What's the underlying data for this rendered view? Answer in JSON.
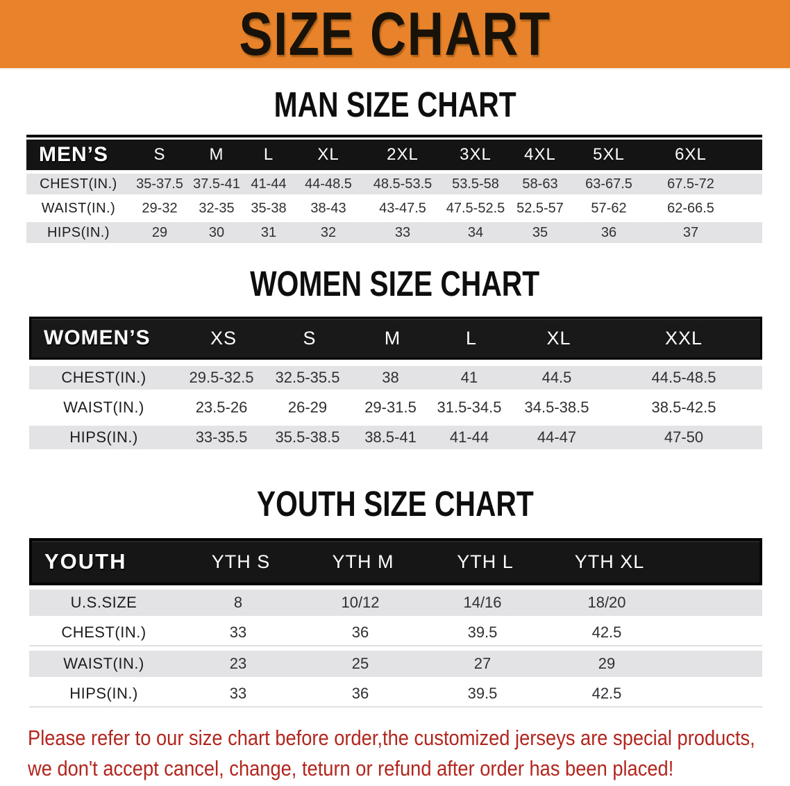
{
  "banner": {
    "title": "SIZE CHART",
    "background_color": "#e8832b",
    "title_color": "#181208"
  },
  "sections": {
    "men": {
      "title": "MAN SIZE CHART",
      "header": [
        "MEN’S",
        "S",
        "M",
        "L",
        "XL",
        "2XL",
        "3XL",
        "4XL",
        "5XL",
        "6XL"
      ],
      "rows": [
        {
          "label": "CHEST(IN.)",
          "values": [
            "35-37.5",
            "37.5-41",
            "41-44",
            "44-48.5",
            "48.5-53.5",
            "53.5-58",
            "58-63",
            "63-67.5",
            "67.5-72"
          ]
        },
        {
          "label": "WAIST(IN.)",
          "values": [
            "29-32",
            "32-35",
            "35-38",
            "38-43",
            "43-47.5",
            "47.5-52.5",
            "52.5-57",
            "57-62",
            "62-66.5"
          ]
        },
        {
          "label": "HIPS(IN.)",
          "values": [
            "29",
            "30",
            "31",
            "32",
            "33",
            "34",
            "35",
            "36",
            "37"
          ]
        }
      ]
    },
    "women": {
      "title": "WOMEN SIZE CHART",
      "header": [
        "WOMEN’S",
        "XS",
        "S",
        "M",
        "L",
        "XL",
        "XXL"
      ],
      "rows": [
        {
          "label": "CHEST(IN.)",
          "values": [
            "29.5-32.5",
            "32.5-35.5",
            "38",
            "41",
            "44.5",
            "44.5-48.5"
          ]
        },
        {
          "label": "WAIST(IN.)",
          "values": [
            "23.5-26",
            "26-29",
            "29-31.5",
            "31.5-34.5",
            "34.5-38.5",
            "38.5-42.5"
          ]
        },
        {
          "label": "HIPS(IN.)",
          "values": [
            "33-35.5",
            "35.5-38.5",
            "38.5-41",
            "41-44",
            "44-47",
            "47-50"
          ]
        }
      ]
    },
    "youth": {
      "title": "YOUTH SIZE CHART",
      "header": [
        "YOUTH",
        "YTH S",
        "YTH M",
        "YTH L",
        "YTH XL"
      ],
      "rows": [
        {
          "label": "U.S.SIZE",
          "values": [
            "8",
            "10/12",
            "14/16",
            "18/20"
          ]
        },
        {
          "label": "CHEST(IN.)",
          "values": [
            "33",
            "36",
            "39.5",
            "42.5"
          ]
        },
        {
          "label": "WAIST(IN.)",
          "values": [
            "23",
            "25",
            "27",
            "29"
          ]
        },
        {
          "label": "HIPS(IN.)",
          "values": [
            "33",
            "36",
            "39.5",
            "42.5"
          ]
        }
      ]
    }
  },
  "disclaimer": {
    "line1": "Please refer to our size chart before order,the customized jerseys are special products,",
    "line2": "we don't accept cancel, change, teturn or refund after order has been placed!",
    "color": "#b2261f"
  },
  "colors": {
    "banner_orange": "#e8832b",
    "header_black": "#141414",
    "stripe_gray": "#e3e3e6",
    "data_text": "#2f2f34"
  }
}
